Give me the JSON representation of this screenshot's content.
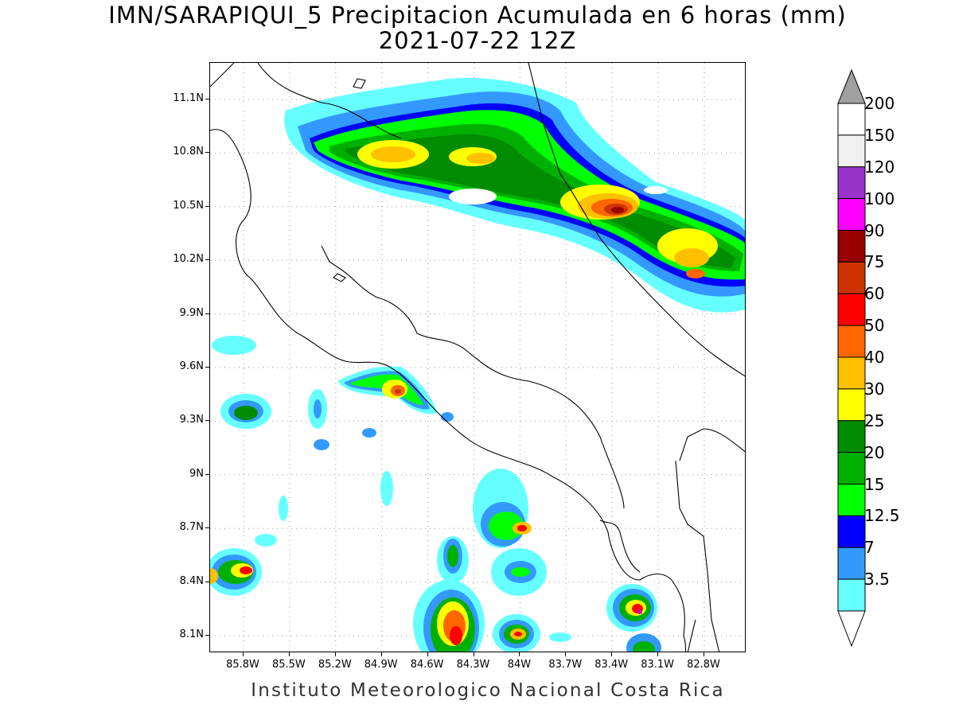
{
  "title": {
    "line1": "IMN/SARAPIQUI_5 Precipitacion Acumulada en 6 horas (mm)",
    "line2": "2021-07-22 12Z"
  },
  "footer": "Instituto Meteorologico Nacional Costa Rica",
  "axes": {
    "lon_ticks": [
      "85.8W",
      "85.5W",
      "85.2W",
      "84.9W",
      "84.6W",
      "84.3W",
      "84W",
      "83.7W",
      "83.4W",
      "83.1W",
      "82.8W"
    ],
    "lat_ticks": [
      "11.1N",
      "10.8N",
      "10.5N",
      "10.2N",
      "9.9N",
      "9.6N",
      "9.3N",
      "9N",
      "8.7N",
      "8.4N",
      "8.1N"
    ]
  },
  "colorbar": {
    "labels": [
      "200",
      "150",
      "120",
      "100",
      "90",
      "75",
      "60",
      "50",
      "40",
      "30",
      "25",
      "20",
      "15",
      "12.5",
      "7",
      "3.5"
    ],
    "colors": [
      "#ffffff",
      "#f0f0f0",
      "#9933cc",
      "#ff00ff",
      "#990000",
      "#cc3300",
      "#ff0000",
      "#ff6600",
      "#ffc000",
      "#ffff00",
      "#008c00",
      "#00b000",
      "#00ff00",
      "#0000ff",
      "#3399ff",
      "#66ffff"
    ],
    "over_color": "#a0a0a0",
    "under_color": "#ffffff"
  }
}
